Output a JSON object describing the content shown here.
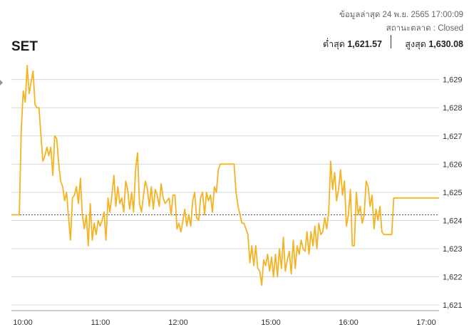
{
  "header": {
    "index_name": "SET",
    "last_updated": "ข้อมูลล่าสุด 24 พ.ย. 2565 17:00:09",
    "market_status": "สถานะตลาด : Closed",
    "low_label": "ต่ำสุด",
    "low_value": "1,621.57",
    "high_label": "สูงสุด",
    "high_value": "1,630.08"
  },
  "colors": {
    "line": "#f5b323",
    "grid": "#d9d9d9",
    "reference_line": "#555555"
  },
  "chart_data": {
    "type": "line",
    "title": "",
    "xlabel": "",
    "ylabel": "",
    "ylim": [
      1620.8,
      1629.7
    ],
    "x_tick_labels": [
      "10:00",
      "11:00",
      "12:00",
      "15:00",
      "16:00",
      "17:00"
    ],
    "y_ticks": [
      1621,
      1622,
      1623,
      1624,
      1625,
      1626,
      1627,
      1628,
      1629
    ],
    "y_tick_labels": [
      "1,621",
      "1,622",
      "1,623",
      "1,624",
      "1,625",
      "1,626",
      "1,627",
      "1,628",
      "1,629"
    ],
    "reference_value": 1624.2,
    "grid": true,
    "series": [
      {
        "values": [
          1624.2,
          1624.2,
          1624.2,
          1624.2,
          1624.2,
          1627.2,
          1628.6,
          1628.2,
          1629.5,
          1628.5,
          1628.9,
          1629.3,
          1628.1,
          1628.0,
          1628.0,
          1627.0,
          1626.1,
          1626.3,
          1626.6,
          1626.3,
          1626.6,
          1625.6,
          1627.0,
          1626.9,
          1626.0,
          1625.4,
          1625.2,
          1624.7,
          1625.0,
          1624.1,
          1623.3,
          1624.8,
          1624.9,
          1625.2,
          1624.6,
          1625.5,
          1624.2,
          1623.7,
          1624.2,
          1623.1,
          1624.6,
          1623.3,
          1623.9,
          1623.5,
          1624.0,
          1623.8,
          1624.0,
          1624.3,
          1623.3,
          1624.8,
          1624.3,
          1624.9,
          1625.6,
          1624.5,
          1625.2,
          1624.6,
          1624.8,
          1624.3,
          1625.4,
          1625.1,
          1624.4,
          1625.0,
          1624.3,
          1625.8,
          1626.4,
          1624.6,
          1624.3,
          1624.9,
          1625.4,
          1625.1,
          1624.5,
          1625.2,
          1624.4,
          1625.1,
          1624.9,
          1624.5,
          1625.3,
          1624.8,
          1624.6,
          1624.7,
          1624.8,
          1624.2,
          1624.9,
          1624.9,
          1623.7,
          1623.9,
          1623.6,
          1624.0,
          1624.4,
          1623.8,
          1624.2,
          1623.8,
          1624.7,
          1625.0,
          1624.1,
          1624.0,
          1624.8,
          1625.0,
          1624.2,
          1625.0,
          1624.7,
          1624.9,
          1624.3,
          1625.2,
          1625.0,
          1625.8,
          1626.0,
          1626.0,
          1626.0,
          1626.0,
          1626.0,
          1626.0,
          1626.0,
          1626.0,
          1625.0,
          1624.5,
          1624.2,
          1623.9,
          1623.9,
          1623.7,
          1623.5,
          1622.5,
          1623.1,
          1622.4,
          1623.1,
          1622.3,
          1622.2,
          1621.7,
          1622.6,
          1622.4,
          1622.8,
          1622.2,
          1622.7,
          1622.0,
          1622.8,
          1622.0,
          1623.0,
          1622.3,
          1623.4,
          1622.2,
          1622.6,
          1622.9,
          1622.1,
          1623.3,
          1622.3,
          1623.1,
          1622.8,
          1623.3,
          1623.0,
          1622.9,
          1623.6,
          1622.8,
          1623.6,
          1623.1,
          1623.8,
          1623.0,
          1623.9,
          1623.5,
          1623.6,
          1624.1,
          1623.7,
          1624.3,
          1626.1,
          1625.1,
          1625.7,
          1624.7,
          1625.1,
          1625.8,
          1624.9,
          1625.4,
          1623.8,
          1624.2,
          1625.1,
          1623.1,
          1623.1,
          1625.0,
          1624.2,
          1624.5,
          1623.9,
          1624.2,
          1625.4,
          1625.2,
          1624.5,
          1624.9,
          1623.7,
          1624.4,
          1624.0,
          1624.5,
          1623.6,
          1623.5,
          1623.5,
          1623.5,
          1623.5,
          1623.5,
          1624.8,
          1624.8,
          1624.8,
          1624.8,
          1624.8,
          1624.8,
          1624.8,
          1624.8,
          1624.8,
          1624.8,
          1624.8,
          1624.8,
          1624.8,
          1624.8,
          1624.8,
          1624.8,
          1624.8,
          1624.8,
          1624.8,
          1624.8,
          1624.8,
          1624.8,
          1624.8,
          1624.8
        ]
      }
    ]
  }
}
